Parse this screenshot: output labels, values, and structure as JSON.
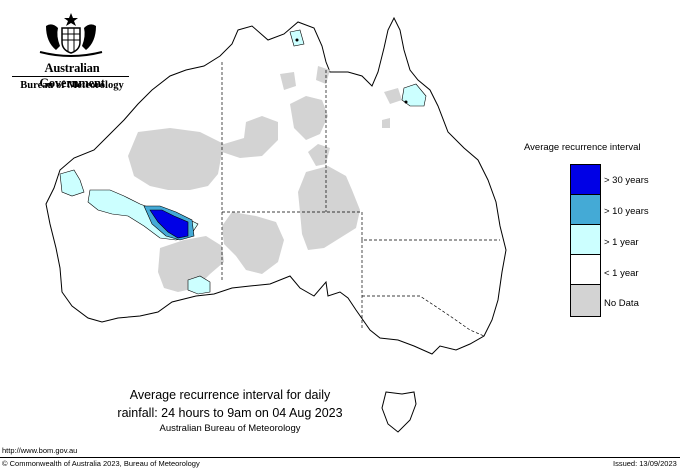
{
  "header": {
    "gov_title": "Australian Government",
    "bureau": "Bureau of Meteorology"
  },
  "legend": {
    "title": "Average recurrence interval",
    "items": [
      {
        "label": "> 30 years",
        "color": "#0000e6"
      },
      {
        "label": "> 10 years",
        "color": "#44aad6"
      },
      {
        "label": "> 1 year",
        "color": "#ccffff"
      },
      {
        "label": "< 1 year",
        "color": "#ffffff"
      },
      {
        "label": "No Data",
        "color": "#d3d3d3"
      }
    ]
  },
  "caption": {
    "line1": "Average recurrence interval for daily",
    "line2": "rainfall: 24 hours to 9am on 04 Aug 2023",
    "line3": "Australian Bureau of Meteorology"
  },
  "footer": {
    "url": "http://www.bom.gov.au",
    "copyright": "© Commonwealth of Australia 2023, Bureau of Meteorology",
    "issued": "Issued: 13/09/2023"
  },
  "colors": {
    "coast": "#000000",
    "no_data": "#d3d3d3",
    "over_30": "#0000e6",
    "over_10": "#44aad6",
    "over_1": "#ccffff"
  }
}
